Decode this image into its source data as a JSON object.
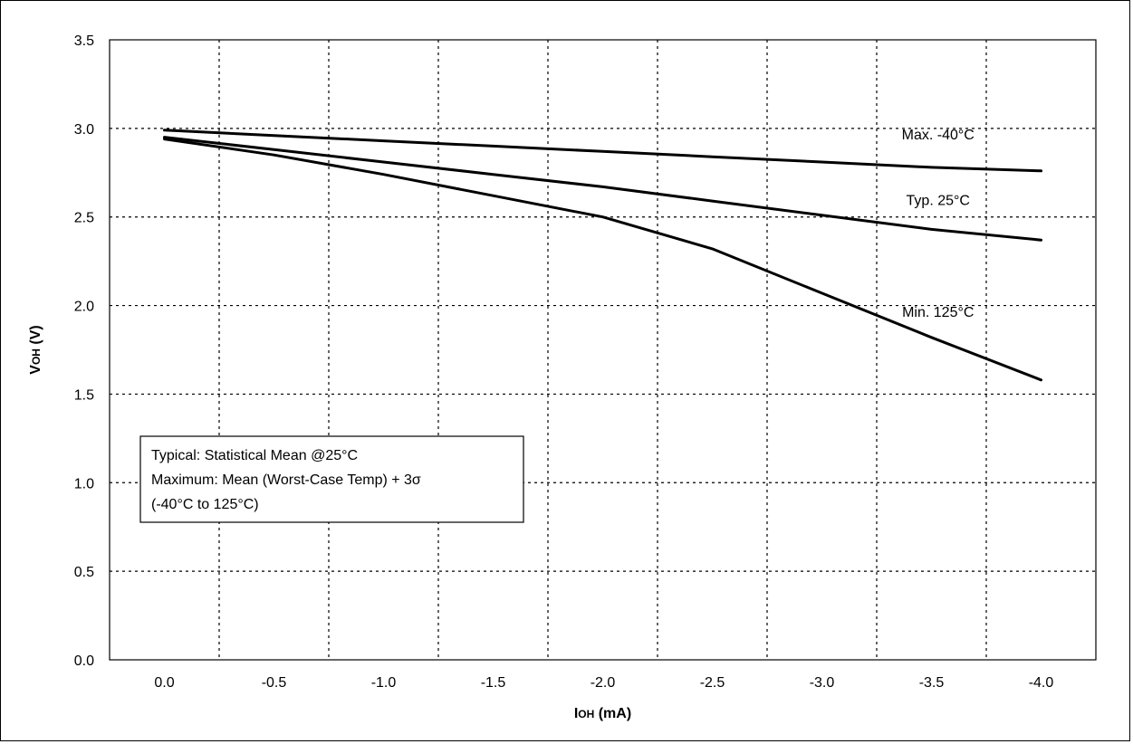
{
  "chart_data": {
    "type": "line",
    "title": "",
    "xlabel": "IOH (mA)",
    "xlabel_parts": {
      "main": "I",
      "sub": "OH",
      "unit": " (mA)"
    },
    "ylabel": "VOH (V)",
    "ylabel_parts": {
      "main": "V",
      "sub": "OH",
      "unit": " (V)"
    },
    "xlim": [
      0.25,
      -4.25
    ],
    "ylim": [
      0.0,
      3.5
    ],
    "xticks": [
      0.0,
      -0.5,
      -1.0,
      -1.5,
      -2.0,
      -2.5,
      -3.0,
      -3.5,
      -4.0
    ],
    "xtick_labels": [
      "0.0",
      "-0.5",
      "-1.0",
      "-1.5",
      "-2.0",
      "-2.5",
      "-3.0",
      "-3.5",
      "-4.0"
    ],
    "yticks": [
      0.0,
      0.5,
      1.0,
      1.5,
      2.0,
      2.5,
      3.0,
      3.5
    ],
    "ytick_labels": [
      "0.0",
      "0.5",
      "1.0",
      "1.5",
      "2.0",
      "2.5",
      "3.0",
      "3.5"
    ],
    "grid": true,
    "series": [
      {
        "name": "Max. -40°C",
        "x": [
          0.0,
          -0.5,
          -1.0,
          -1.5,
          -2.0,
          -2.5,
          -3.0,
          -3.5,
          -4.0
        ],
        "y": [
          2.99,
          2.96,
          2.93,
          2.9,
          2.87,
          2.84,
          2.81,
          2.78,
          2.76
        ]
      },
      {
        "name": "Typ. 25°C",
        "x": [
          0.0,
          -0.5,
          -1.0,
          -1.5,
          -2.0,
          -2.5,
          -3.0,
          -3.5,
          -4.0
        ],
        "y": [
          2.95,
          2.88,
          2.81,
          2.74,
          2.67,
          2.59,
          2.51,
          2.43,
          2.37
        ]
      },
      {
        "name": "Min. 125°C",
        "x": [
          0.0,
          -0.5,
          -1.0,
          -1.5,
          -2.0,
          -2.5,
          -3.0,
          -3.5,
          -4.0
        ],
        "y": [
          2.94,
          2.85,
          2.74,
          2.62,
          2.5,
          2.32,
          2.07,
          1.82,
          1.58
        ]
      }
    ],
    "legend": {
      "placement": "lower-left",
      "lines": [
        "Typical: Statistical Mean @25°C",
        "Maximum: Mean (Worst-Case Temp) + 3σ",
        "(-40°C to 125°C)"
      ]
    }
  }
}
